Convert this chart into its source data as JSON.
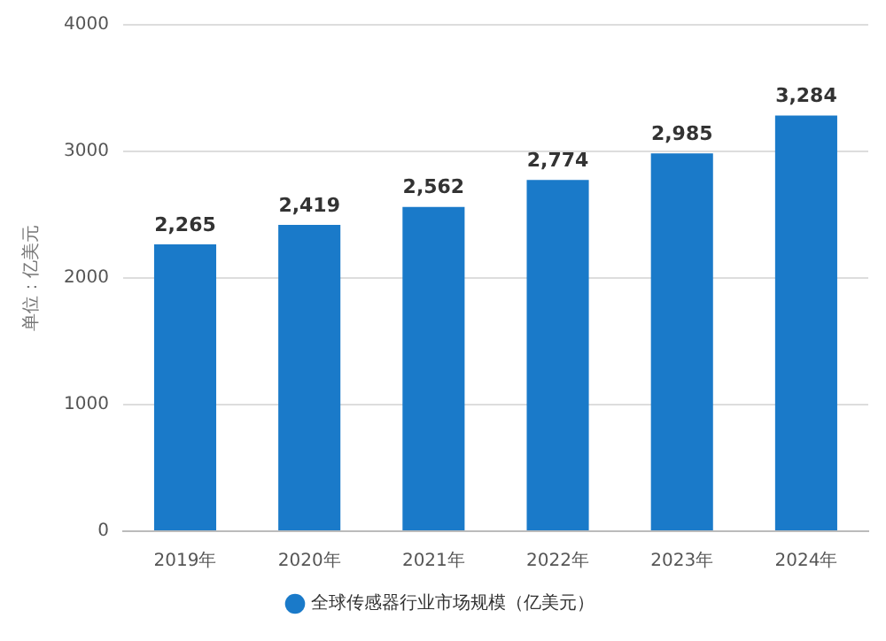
{
  "chart_data": {
    "type": "bar",
    "ylabel": "单位：亿美元",
    "categories": [
      "2019年",
      "2020年",
      "2021年",
      "2022年",
      "2023年",
      "2024年"
    ],
    "series": [
      {
        "name": "全球传感器行业市场规模（亿美元）",
        "color": "#1a7ac9",
        "values": [
          2265,
          2419,
          2562,
          2774,
          2985,
          3284
        ],
        "value_labels": [
          "2,265",
          "2,419",
          "2,562",
          "2,774",
          "2,985",
          "3,284"
        ]
      }
    ],
    "ylim": [
      0,
      4000
    ],
    "yticks": [
      0,
      1000,
      2000,
      3000,
      4000
    ],
    "grid": "y",
    "legend": "bottom",
    "marker": "circle"
  }
}
